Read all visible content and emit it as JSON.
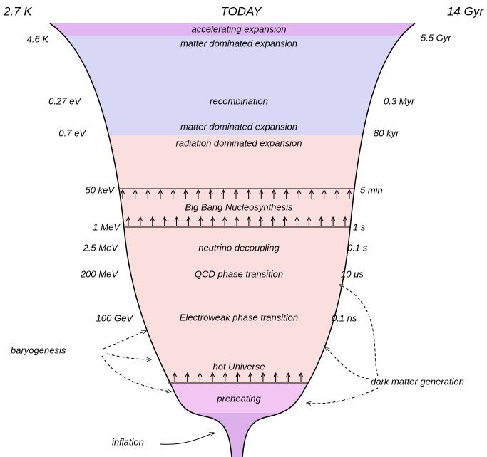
{
  "header": {
    "left": "2.7 K",
    "center": "TODAY",
    "right": "14 Gyr"
  },
  "left_labels": [
    "4.6 K",
    "0.27 eV",
    "0.7 eV",
    "50 keV",
    "1 MeV",
    "2.5 MeV",
    "200 MeV",
    "100 GeV"
  ],
  "right_labels": [
    "5.5 Gyr",
    "0.3 Myr",
    "80 kyr",
    "5 min",
    "1 s",
    "0.1 s",
    "10 μs",
    "0.1 ns"
  ],
  "eras": [
    "accelerating expansion",
    "matter dominated expansion",
    "recombination",
    "matter dominated expansion",
    "radiation dominated expansion",
    "Big Bang Nucleosynthesis",
    "neutrino decoupling",
    "QCD phase transition",
    "Electroweak phase transition",
    "hot Universe",
    "preheating"
  ],
  "annotations": [
    "baryogenesis",
    "dark matter generation",
    "inflation"
  ]
}
